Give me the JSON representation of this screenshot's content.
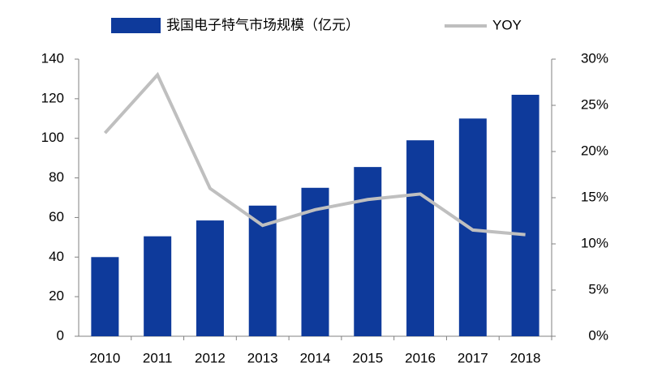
{
  "chart_data": {
    "type": "bar",
    "categories": [
      "2010",
      "2011",
      "2012",
      "2013",
      "2014",
      "2015",
      "2016",
      "2017",
      "2018"
    ],
    "series": [
      {
        "name": "我国电子特气市场规模（亿元）",
        "color": "#0e3a9b",
        "type": "bar",
        "values": [
          40,
          50.5,
          58.5,
          66,
          75,
          85.5,
          99,
          110,
          122
        ]
      },
      {
        "name": "YOY",
        "color": "#bfbfbf",
        "type": "line",
        "axis": "y2",
        "values": [
          22,
          28.3,
          16,
          12,
          13.7,
          14.8,
          15.4,
          11.5,
          11
        ]
      }
    ],
    "ylim": [
      0,
      140
    ],
    "yticks": [
      0,
      20,
      40,
      60,
      80,
      100,
      120,
      140
    ],
    "y2lim": [
      0,
      30
    ],
    "y2ticks": [
      {
        "value": 0,
        "label": "0%"
      },
      {
        "value": 5,
        "label": "5%"
      },
      {
        "value": 10,
        "label": "10%"
      },
      {
        "value": 15,
        "label": "15%"
      },
      {
        "value": 20,
        "label": "20%"
      },
      {
        "value": 25,
        "label": "25%"
      },
      {
        "value": 30,
        "label": "30%"
      }
    ],
    "legend": "top"
  }
}
